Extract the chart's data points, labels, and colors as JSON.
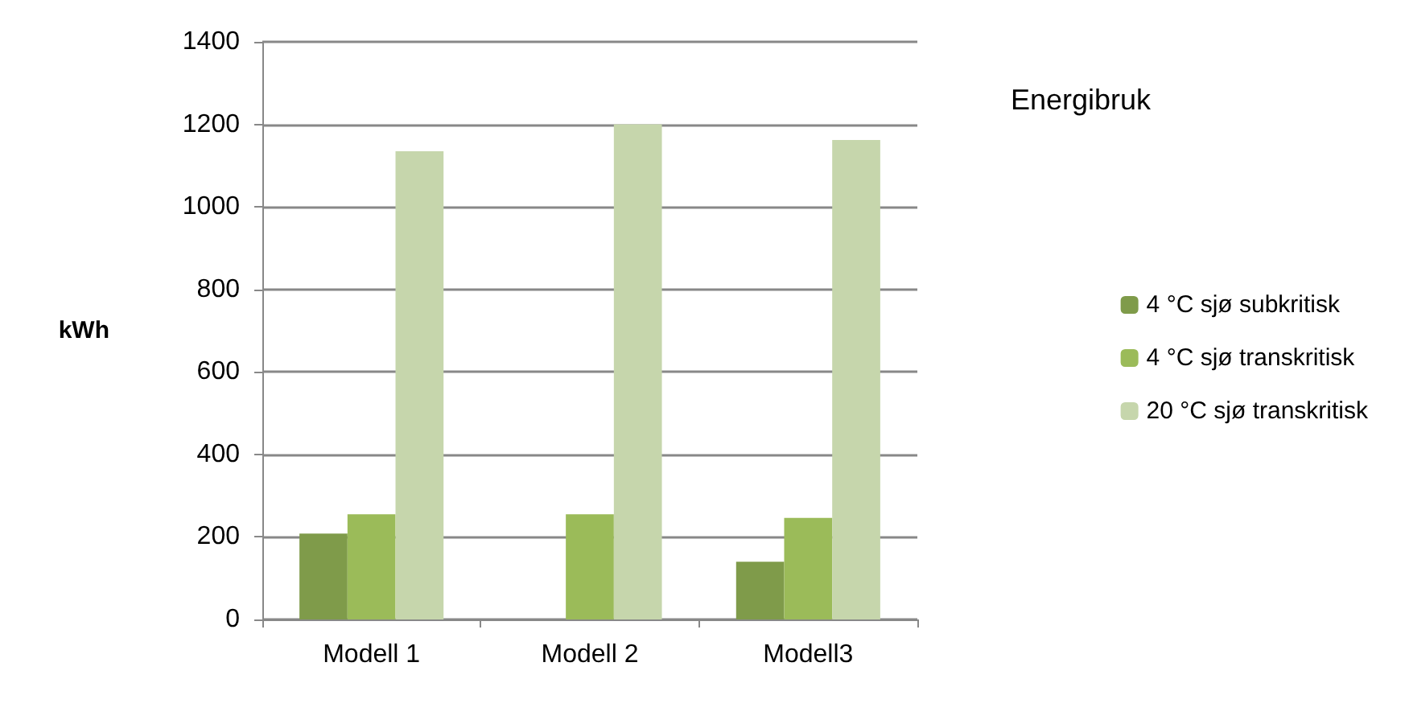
{
  "chart_data": {
    "type": "bar",
    "title": "Energibruk",
    "ylabel": "kWh",
    "categories": [
      "Modell 1",
      "Modell 2",
      "Modell3"
    ],
    "series": [
      {
        "name": "4 °C sjø subkritisk",
        "color": "#7f9b4a",
        "values": [
          208,
          null,
          140
        ]
      },
      {
        "name": "4 °C sjø transkritisk",
        "color": "#9bbb59",
        "values": [
          255,
          255,
          246
        ]
      },
      {
        "name": "20 °C sjø transkritisk",
        "color": "#c6d6ac",
        "values": [
          1135,
          1200,
          1162
        ]
      }
    ],
    "ylim": [
      0,
      1400
    ],
    "yticks": [
      0,
      200,
      400,
      600,
      800,
      1000,
      1200,
      1400
    ],
    "grid": "y",
    "legend": "right"
  }
}
